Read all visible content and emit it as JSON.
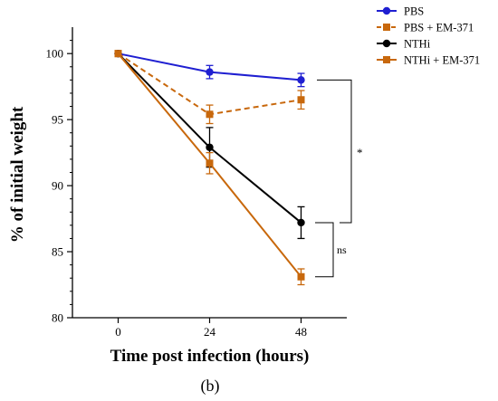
{
  "chart_data": {
    "type": "line",
    "x": [
      0,
      24,
      48
    ],
    "xticks": [
      "0",
      "24",
      "48"
    ],
    "xlabel": "Time post infection (hours)",
    "ylabel": "% of initial weight",
    "ylim": [
      80,
      102
    ],
    "yticks": [
      80,
      85,
      90,
      95,
      100
    ],
    "grid": false,
    "legend_position": "top-right",
    "panel_label": "(b)",
    "series": [
      {
        "name": "PBS",
        "values": [
          100,
          98.6,
          98.0
        ],
        "errors": [
          0,
          0.5,
          0.5
        ],
        "color": "#1f1fd1",
        "marker": "circle",
        "dash": "solid"
      },
      {
        "name": "PBS + EM-371",
        "values": [
          100,
          95.4,
          96.5
        ],
        "errors": [
          0,
          0.7,
          0.7
        ],
        "color": "#c8680c",
        "marker": "square",
        "dash": "dashed"
      },
      {
        "name": "NTHi",
        "values": [
          100,
          92.9,
          87.2
        ],
        "errors": [
          0,
          1.5,
          1.2
        ],
        "color": "#000000",
        "marker": "circle",
        "dash": "solid"
      },
      {
        "name": "NTHi + EM-371",
        "values": [
          100,
          91.7,
          83.1
        ],
        "errors": [
          0,
          0.8,
          0.6
        ],
        "color": "#c8680c",
        "marker": "square",
        "dash": "solid"
      }
    ],
    "annotations": [
      {
        "label": "*",
        "between": [
          "PBS",
          "NTHi"
        ]
      },
      {
        "label": "ns",
        "between": [
          "NTHi",
          "NTHi + EM-371"
        ]
      }
    ]
  }
}
